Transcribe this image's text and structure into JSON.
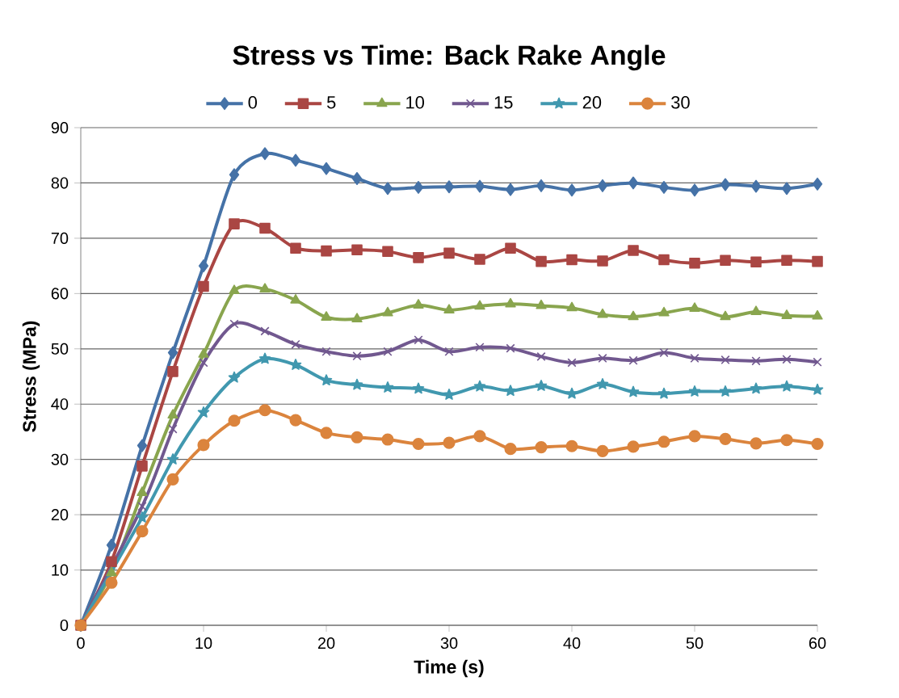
{
  "chart_data": {
    "type": "line",
    "title": "Stress vs Time: Back Rake Angle",
    "xlabel": "Time (s)",
    "ylabel": "Stress  (MPa)",
    "x": [
      0,
      2.5,
      5,
      7.5,
      10,
      12.5,
      15,
      17.5,
      20,
      22.5,
      25,
      27.5,
      30,
      32.5,
      35,
      37.5,
      40,
      42.5,
      45,
      47.5,
      50,
      52.5,
      55,
      57.5,
      60
    ],
    "xlim": [
      0,
      60
    ],
    "xticks": [
      0,
      10,
      20,
      30,
      40,
      50,
      60
    ],
    "ylim": [
      0,
      90
    ],
    "yticks": [
      0,
      10,
      20,
      30,
      40,
      50,
      60,
      70,
      80,
      90
    ],
    "grid": "y",
    "legend": "top",
    "series": [
      {
        "name": "0",
        "color": "#4572a7",
        "marker": "diamond",
        "values": [
          0,
          14.5,
          32.5,
          49.3,
          65,
          81.5,
          85.3,
          84.1,
          82.6,
          80.8,
          79.0,
          79.2,
          79.3,
          79.4,
          78.8,
          79.5,
          78.7,
          79.5,
          80.0,
          79.2,
          78.7,
          79.7,
          79.4,
          79.0,
          79.8
        ]
      },
      {
        "name": "5",
        "color": "#aa4643",
        "marker": "square",
        "values": [
          0,
          11.5,
          28.8,
          45.9,
          61.3,
          72.6,
          71.8,
          68.2,
          67.7,
          67.9,
          67.6,
          66.5,
          67.3,
          66.2,
          68.2,
          65.8,
          66.1,
          65.9,
          67.8,
          66.1,
          65.5,
          66.0,
          65.7,
          66.0,
          65.8
        ]
      },
      {
        "name": "10",
        "color": "#89a54e",
        "marker": "triangle",
        "values": [
          0,
          9.5,
          24,
          38,
          49,
          60.5,
          60.8,
          58.8,
          55.7,
          55.4,
          56.5,
          57.9,
          57.0,
          57.7,
          58.1,
          57.8,
          57.4,
          56.2,
          55.8,
          56.5,
          57.3,
          55.8,
          56.7,
          56.0,
          55.9
        ]
      },
      {
        "name": "15",
        "color": "#71588f",
        "marker": "cross",
        "values": [
          0,
          null,
          21.5,
          35.5,
          47.5,
          54.5,
          53.2,
          50.8,
          49.5,
          48.7,
          49.5,
          51.6,
          49.5,
          50.3,
          50.1,
          48.6,
          47.5,
          48.3,
          47.9,
          49.3,
          48.3,
          48.0,
          47.8,
          48.1,
          47.6
        ]
      },
      {
        "name": "20",
        "color": "#4198af",
        "marker": "star",
        "values": [
          0,
          null,
          19.5,
          30,
          38.5,
          44.8,
          48.2,
          47.1,
          44.3,
          43.5,
          43.0,
          42.8,
          41.7,
          43.2,
          42.4,
          43.3,
          41.9,
          43.6,
          42.2,
          41.9,
          42.3,
          42.3,
          42.8,
          43.2,
          42.6
        ]
      },
      {
        "name": "30",
        "color": "#db843d",
        "marker": "circle",
        "values": [
          0,
          7.7,
          17,
          26.4,
          32.6,
          37.0,
          38.9,
          37.1,
          34.8,
          34.0,
          33.6,
          32.8,
          33.0,
          34.2,
          31.9,
          32.2,
          32.4,
          31.5,
          32.3,
          33.2,
          34.2,
          33.7,
          32.9,
          33.5,
          32.8
        ]
      }
    ]
  }
}
